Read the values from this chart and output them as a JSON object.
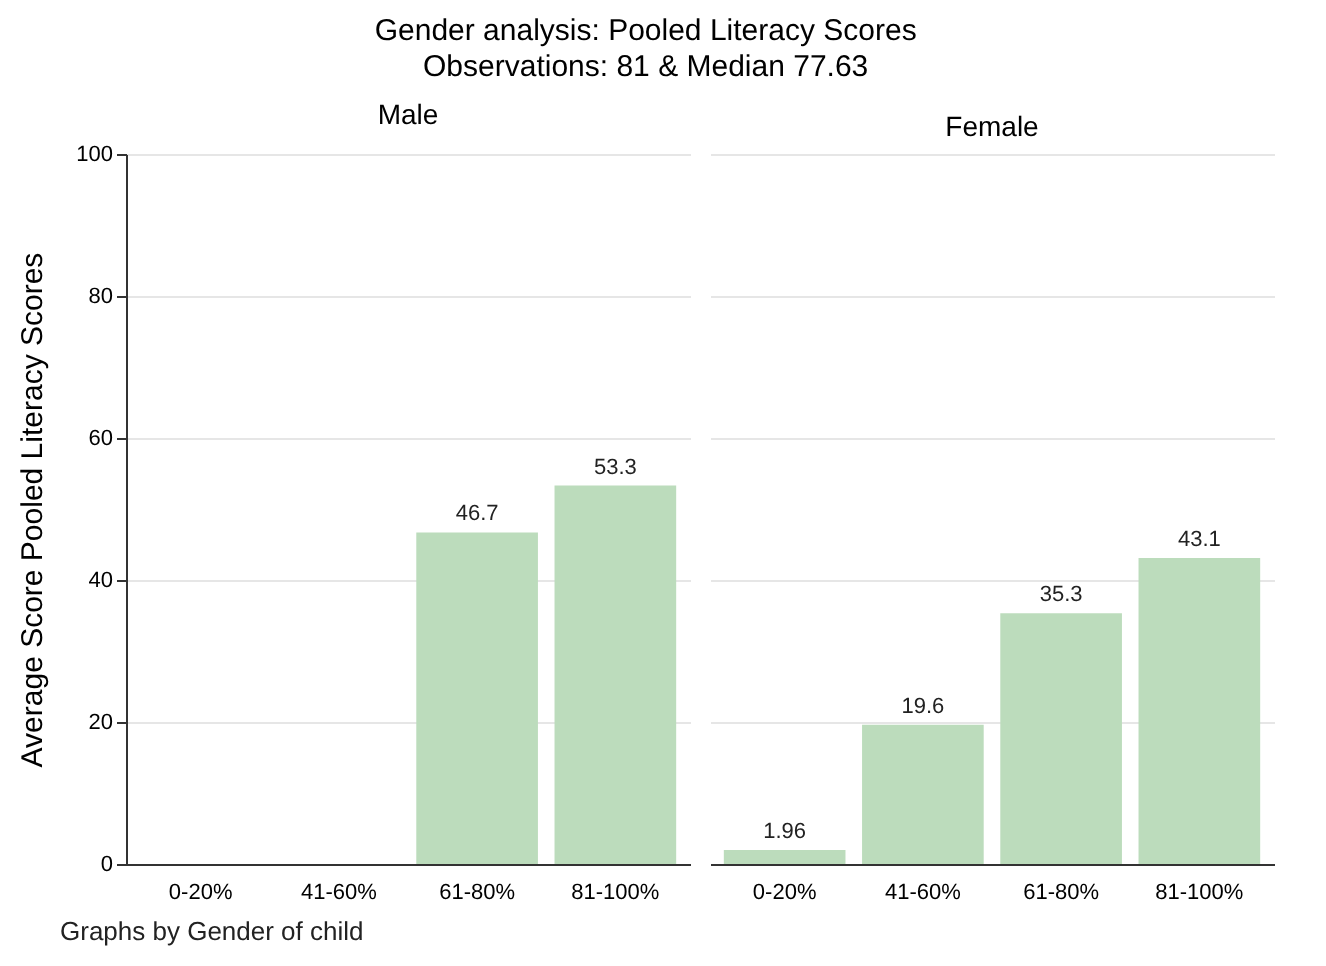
{
  "chart_data": [
    {
      "type": "bar",
      "title": "Male",
      "ylabel": "Average Score Pooled Literacy Scores",
      "annotations": [
        "Gender analysis: Pooled Literacy Scores",
        "Observations: 81 & Median 77.63",
        "Graphs by Gender of child"
      ],
      "categories": [
        "0-20%",
        "41-60%",
        "61-80%",
        "81-100%"
      ],
      "values": [
        null,
        null,
        46.7,
        53.3
      ],
      "color": "#bcdcbc",
      "ylim": [
        0,
        100
      ],
      "yticks": [
        0,
        20,
        40,
        60,
        80,
        100
      ],
      "grid": "y",
      "data_labels": true
    },
    {
      "type": "bar",
      "title": "Female",
      "categories": [
        "0-20%",
        "41-60%",
        "61-80%",
        "81-100%"
      ],
      "values": [
        1.96,
        19.6,
        35.3,
        43.1
      ],
      "color": "#bcdcbc",
      "ylim": [
        0,
        100
      ],
      "yticks": [
        0,
        20,
        40,
        60,
        80,
        100
      ],
      "grid": "y",
      "data_labels": true,
      "tick_labels": "x"
    }
  ]
}
